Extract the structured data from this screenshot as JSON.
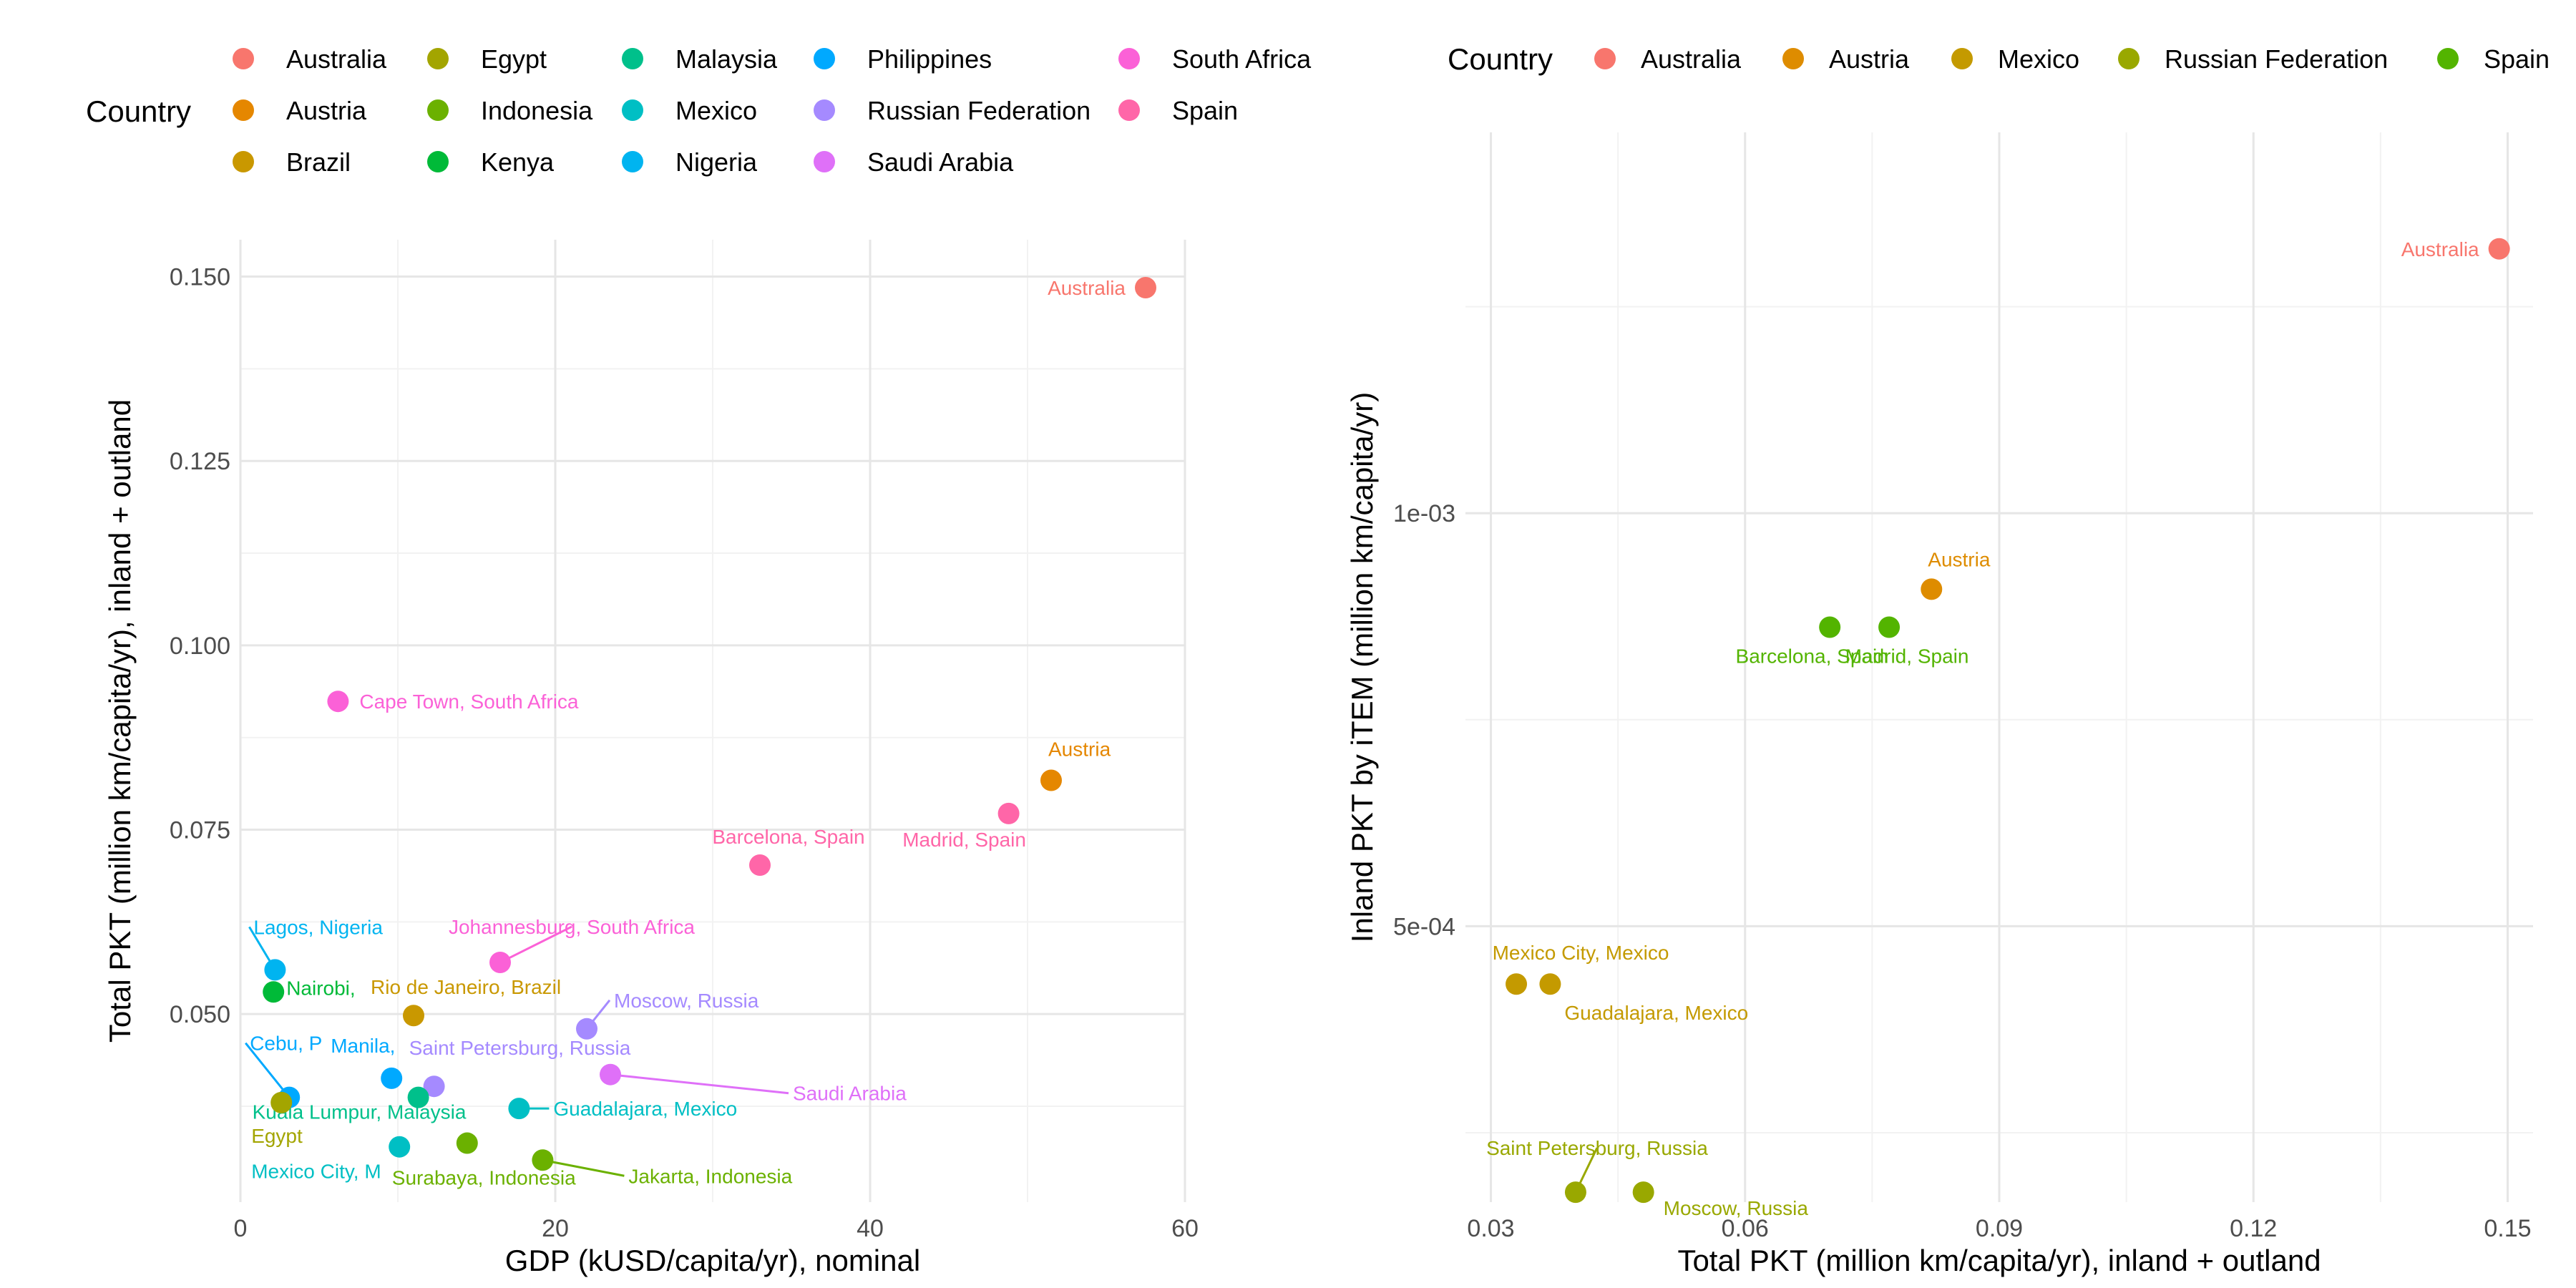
{
  "chart_data": [
    {
      "type": "scatter",
      "xlabel": "GDP (kUSD/capita/yr), nominal",
      "ylabel": "Total PKT (million km/capita/yr), inland + outland",
      "xlim": [
        0,
        60
      ],
      "ylim": [
        0.0245,
        0.155
      ],
      "x_ticks": [
        0,
        20,
        40,
        60
      ],
      "x_tick_labels": [
        "0",
        "20",
        "40",
        "60"
      ],
      "y_ticks": [
        0.05,
        0.075,
        0.1,
        0.125,
        0.15
      ],
      "y_tick_labels": [
        "0.050",
        "0.075",
        "0.100",
        "0.125",
        "0.150"
      ],
      "grid": true,
      "legend": {
        "title": "Country",
        "position": "top",
        "entries": [
          {
            "label": "Australia",
            "color": "#F8766D"
          },
          {
            "label": "Austria",
            "color": "#E58700"
          },
          {
            "label": "Brazil",
            "color": "#C99800"
          },
          {
            "label": "Egypt",
            "color": "#A3A500"
          },
          {
            "label": "Indonesia",
            "color": "#6BB100"
          },
          {
            "label": "Kenya",
            "color": "#00BA38"
          },
          {
            "label": "Malaysia",
            "color": "#00C08B"
          },
          {
            "label": "Mexico",
            "color": "#00BFC4"
          },
          {
            "label": "Nigeria",
            "color": "#00B4F0"
          },
          {
            "label": "Philippines",
            "color": "#00A9FF"
          },
          {
            "label": "Russian Federation",
            "color": "#A58AFF"
          },
          {
            "label": "Saudi Arabia",
            "color": "#DF70F8"
          },
          {
            "label": "South Africa",
            "color": "#FB61D7"
          },
          {
            "label": "Spain",
            "color": "#FF66A8"
          }
        ]
      },
      "points": [
        {
          "label": "Australia",
          "country": "Australia",
          "x": 57.5,
          "y": 0.1485
        },
        {
          "label": "Austria",
          "country": "Austria",
          "x": 51.5,
          "y": 0.0817
        },
        {
          "label": "Madrid, Spain",
          "country": "Spain",
          "x": 48.8,
          "y": 0.0772
        },
        {
          "label": "Barcelona, Spain",
          "country": "Spain",
          "x": 33.0,
          "y": 0.0702
        },
        {
          "label": "Cape Town, South Africa",
          "country": "South Africa",
          "x": 6.2,
          "y": 0.0924
        },
        {
          "label": "Johannesburg, South Africa",
          "country": "South Africa",
          "x": 16.5,
          "y": 0.057
        },
        {
          "label": "Lagos, Nigeria",
          "country": "Nigeria",
          "x": 2.2,
          "y": 0.056
        },
        {
          "label": "Nairobi, Kenya",
          "country": "Kenya",
          "x": 2.1,
          "y": 0.053
        },
        {
          "label": "Rio de Janeiro, Brazil",
          "country": "Brazil",
          "x": 11.0,
          "y": 0.0498
        },
        {
          "label": "Moscow, Russia",
          "country": "Russian Federation",
          "x": 22.0,
          "y": 0.048
        },
        {
          "label": "Saint Petersburg, Russia",
          "country": "Russian Federation",
          "x": 12.3,
          "y": 0.0402
        },
        {
          "label": "Saudi Arabia",
          "country": "Saudi Arabia",
          "x": 23.5,
          "y": 0.0418
        },
        {
          "label": "Manila, Philippines",
          "country": "Philippines",
          "x": 9.6,
          "y": 0.0413
        },
        {
          "label": "Cebu, Philippines",
          "country": "Philippines",
          "x": 3.1,
          "y": 0.0387
        },
        {
          "label": "Kuala Lumpur, Malaysia",
          "country": "Malaysia",
          "x": 11.3,
          "y": 0.0387
        },
        {
          "label": "Guadalajara, Mexico",
          "country": "Mexico",
          "x": 17.7,
          "y": 0.0372
        },
        {
          "label": "Egypt",
          "country": "Egypt",
          "x": 2.6,
          "y": 0.038
        },
        {
          "label": "Mexico City, Mexico",
          "country": "Mexico",
          "x": 10.1,
          "y": 0.032
        },
        {
          "label": "Surabaya, Indonesia",
          "country": "Indonesia",
          "x": 14.4,
          "y": 0.0325
        },
        {
          "label": "Jakarta, Indonesia",
          "country": "Indonesia",
          "x": 19.2,
          "y": 0.0302
        }
      ],
      "visible_labels": [
        "Australia",
        "Austria",
        "Madrid, Spain",
        "Barcelona, Spain",
        "Cape Town, South Africa",
        "Johannesburg, South Africa",
        "Lagos, Nigeria",
        "Nairobi,",
        "Rio de Janeiro, Brazil",
        "Moscow, Russia",
        "Cebu, P",
        "Manila,",
        "Saint Petersburg, Russia",
        "Saudi Arabia",
        "Kuala Lumpur, Malaysia",
        "Guadalajara, Mexico",
        "Egypt",
        "Mexico City, M",
        "Surabaya, Indonesia",
        "Jakarta, Indonesia"
      ]
    },
    {
      "type": "scatter",
      "xlabel": "Total PKT (million km/capita/yr), inland + outland",
      "ylabel": "Inland PKT by iTEM (million km/capita/yr)",
      "xlim": [
        0.027,
        0.153
      ],
      "ylim": [
        0.000166,
        0.001461
      ],
      "x_ticks": [
        0.03,
        0.06,
        0.09,
        0.12,
        0.15
      ],
      "x_tick_labels": [
        "0.03",
        "0.06",
        "0.09",
        "0.12",
        "0.15"
      ],
      "y_ticks": [
        0.0005,
        0.001
      ],
      "y_tick_labels": [
        "5e-04",
        "1e-03"
      ],
      "grid": true,
      "legend": {
        "title": "Country",
        "position": "top",
        "entries": [
          {
            "label": "Australia",
            "color": "#F8766D"
          },
          {
            "label": "Austria",
            "color": "#DE8C00"
          },
          {
            "label": "Mexico",
            "color": "#C49A00"
          },
          {
            "label": "Russian Federation",
            "color": "#99A800"
          },
          {
            "label": "Spain",
            "color": "#53B400"
          }
        ]
      },
      "points": [
        {
          "label": "Australia",
          "country": "Australia",
          "x": 0.149,
          "y": 0.00132
        },
        {
          "label": "Austria",
          "country": "Austria",
          "x": 0.082,
          "y": 0.000908
        },
        {
          "label": "Barcelona, Spain",
          "country": "Spain",
          "x": 0.07,
          "y": 0.000862
        },
        {
          "label": "Madrid, Spain",
          "country": "Spain",
          "x": 0.077,
          "y": 0.000862
        },
        {
          "label": "Mexico City, Mexico",
          "country": "Mexico",
          "x": 0.033,
          "y": 0.00043
        },
        {
          "label": "Guadalajara, Mexico",
          "country": "Mexico",
          "x": 0.037,
          "y": 0.00043
        },
        {
          "label": "Saint Petersburg, Russia",
          "country": "Russian Federation",
          "x": 0.04,
          "y": 0.000178
        },
        {
          "label": "Moscow, Russia",
          "country": "Russian Federation",
          "x": 0.048,
          "y": 0.000178
        }
      ]
    }
  ]
}
